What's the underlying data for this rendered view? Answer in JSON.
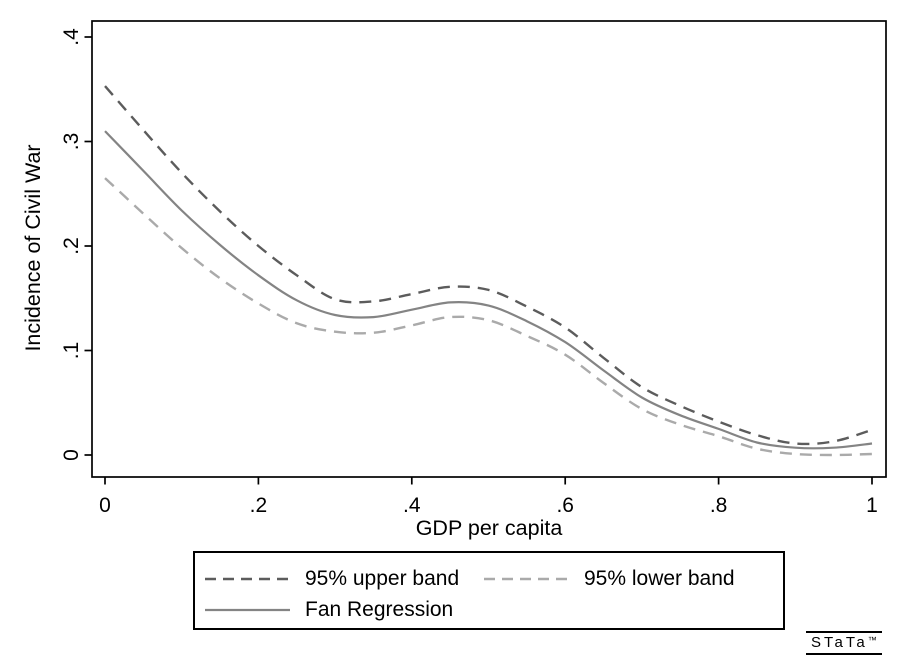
{
  "figure": {
    "background": "#ffffff",
    "branding": {
      "logo_text": "STaTa",
      "trademark": "™"
    }
  },
  "chart_data": {
    "type": "line",
    "title": "",
    "xlabel": "GDP per capita",
    "ylabel": "Incidence of Civil War",
    "xlim": [
      0,
      1
    ],
    "ylim": [
      0,
      0.4
    ],
    "grid": false,
    "legend_position": "bottom",
    "axis_color": "#000000",
    "x_ticks": [
      {
        "value": 0.0,
        "label": "0"
      },
      {
        "value": 0.2,
        "label": ".2"
      },
      {
        "value": 0.4,
        "label": ".4"
      },
      {
        "value": 0.6,
        "label": ".6"
      },
      {
        "value": 0.8,
        "label": ".8"
      },
      {
        "value": 1.0,
        "label": "1"
      }
    ],
    "y_ticks": [
      {
        "value": 0.0,
        "label": "0"
      },
      {
        "value": 0.1,
        "label": ".1"
      },
      {
        "value": 0.2,
        "label": ".2"
      },
      {
        "value": 0.3,
        "label": ".3"
      },
      {
        "value": 0.4,
        "label": ".4"
      }
    ],
    "x": [
      0,
      0.05,
      0.1,
      0.15,
      0.2,
      0.25,
      0.3,
      0.35,
      0.4,
      0.45,
      0.5,
      0.55,
      0.6,
      0.65,
      0.7,
      0.75,
      0.8,
      0.85,
      0.9,
      0.95,
      1.0
    ],
    "series": [
      {
        "name": "95% upper band",
        "style": "dashed",
        "color": "#5c5c5c",
        "values": [
          0.353,
          0.311,
          0.27,
          0.233,
          0.2,
          0.172,
          0.149,
          0.147,
          0.154,
          0.161,
          0.158,
          0.142,
          0.122,
          0.093,
          0.065,
          0.047,
          0.032,
          0.019,
          0.011,
          0.013,
          0.024
        ]
      },
      {
        "name": "Fan Regression",
        "style": "solid",
        "color": "#848484",
        "values": [
          0.31,
          0.272,
          0.234,
          0.201,
          0.172,
          0.148,
          0.134,
          0.132,
          0.139,
          0.146,
          0.143,
          0.128,
          0.108,
          0.081,
          0.055,
          0.038,
          0.025,
          0.012,
          0.007,
          0.007,
          0.011
        ]
      },
      {
        "name": "95% lower band",
        "style": "dashed",
        "color": "#aaaaaa",
        "values": [
          0.265,
          0.231,
          0.198,
          0.169,
          0.145,
          0.126,
          0.118,
          0.117,
          0.124,
          0.132,
          0.129,
          0.114,
          0.096,
          0.069,
          0.044,
          0.029,
          0.018,
          0.006,
          0.001,
          0.0,
          0.001
        ]
      }
    ]
  }
}
